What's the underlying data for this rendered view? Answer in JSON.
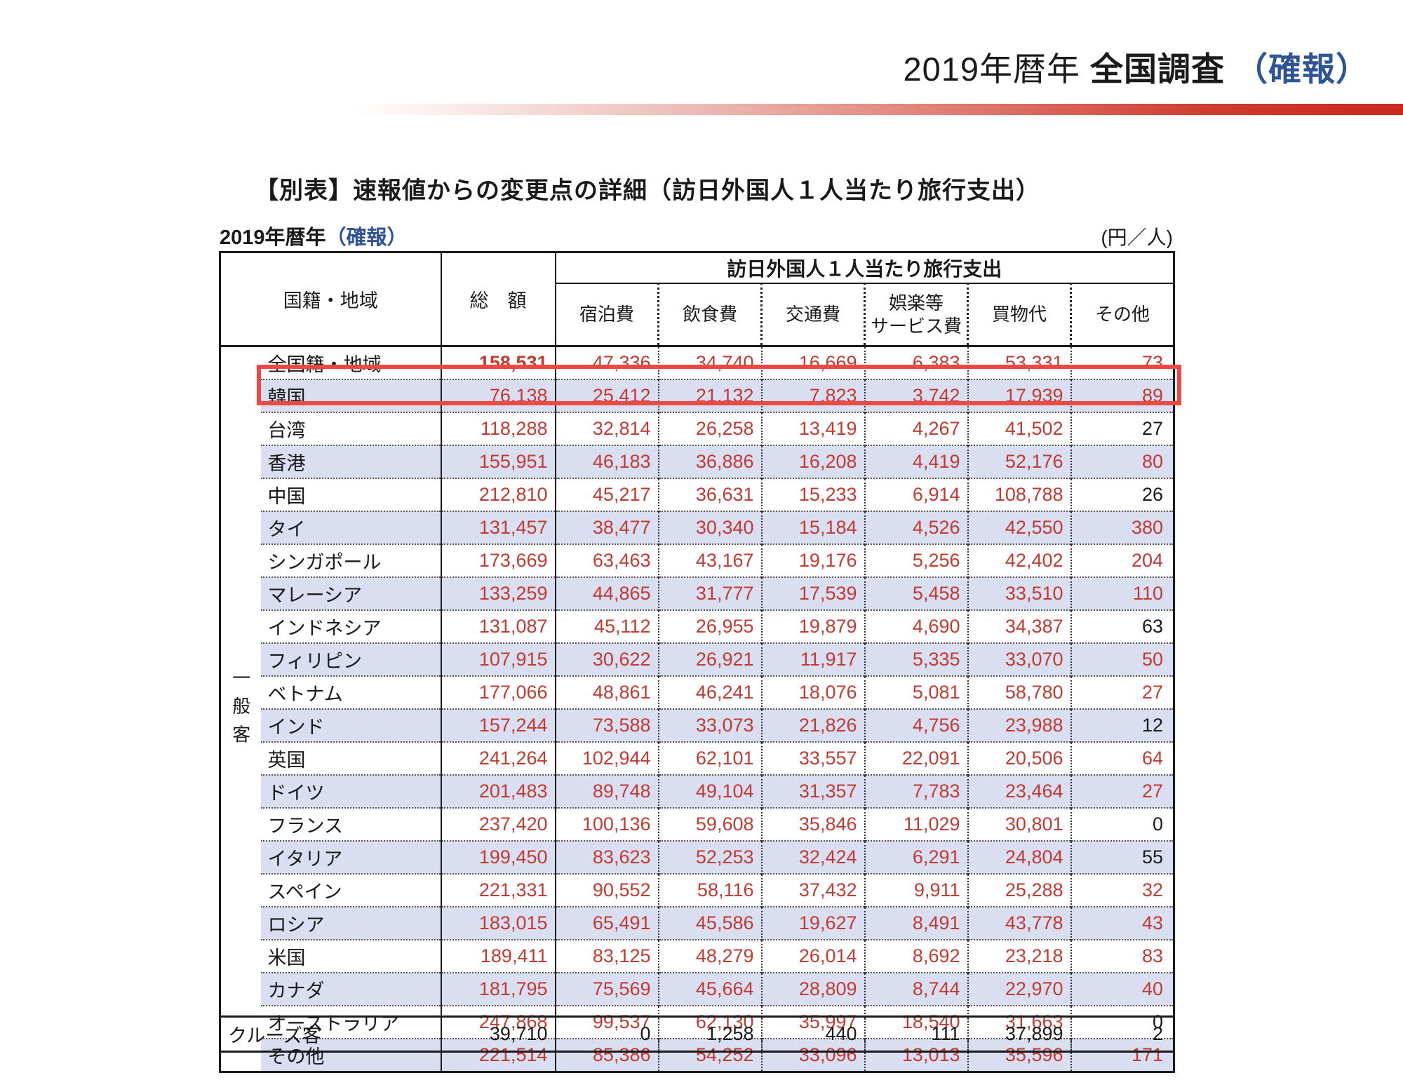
{
  "page_title": {
    "year": "2019年暦年",
    "survey": "全国調査",
    "kakuho": "（確報）"
  },
  "subtitle": "【別表】速報値からの変更点の詳細（訪日外国人１人当たり旅行支出）",
  "period_label": {
    "year": "2019年暦年",
    "kakuho": "（確報）"
  },
  "unit_label": "(円／人)",
  "accent_colors": {
    "bar_red": "#c82a1e",
    "highlight_red": "#ee4843",
    "value_red": "#c23a32",
    "stripe_lavender": "#d9def0",
    "kakuho_blue": "#2f5496"
  },
  "table": {
    "header": {
      "nationality": "国籍・地域",
      "total": "総　額",
      "group": "訪日外国人１人当たり旅行支出",
      "sub": [
        "宿泊費",
        "飲食費",
        "交通費",
        "娯楽等\nサービス費",
        "買物代",
        "その他"
      ]
    },
    "visitor_group_label": "一般客",
    "rows": [
      {
        "name": "全国籍・地域",
        "shaded": false,
        "bold_total": true,
        "values": [
          "158,531",
          "47,336",
          "34,740",
          "16,669",
          "6,383",
          "53,331",
          "73"
        ],
        "black": []
      },
      {
        "name": "韓国",
        "shaded": true,
        "highlight": true,
        "values": [
          "76,138",
          "25,412",
          "21,132",
          "7,823",
          "3,742",
          "17,939",
          "89"
        ],
        "black": []
      },
      {
        "name": "台湾",
        "shaded": false,
        "values": [
          "118,288",
          "32,814",
          "26,258",
          "13,419",
          "4,267",
          "41,502",
          "27"
        ],
        "black": [
          6
        ]
      },
      {
        "name": "香港",
        "shaded": true,
        "values": [
          "155,951",
          "46,183",
          "36,886",
          "16,208",
          "4,419",
          "52,176",
          "80"
        ],
        "black": []
      },
      {
        "name": "中国",
        "shaded": false,
        "values": [
          "212,810",
          "45,217",
          "36,631",
          "15,233",
          "6,914",
          "108,788",
          "26"
        ],
        "black": [
          6
        ]
      },
      {
        "name": "タイ",
        "shaded": true,
        "values": [
          "131,457",
          "38,477",
          "30,340",
          "15,184",
          "4,526",
          "42,550",
          "380"
        ],
        "black": []
      },
      {
        "name": "シンガポール",
        "shaded": false,
        "values": [
          "173,669",
          "63,463",
          "43,167",
          "19,176",
          "5,256",
          "42,402",
          "204"
        ],
        "black": []
      },
      {
        "name": "マレーシア",
        "shaded": true,
        "values": [
          "133,259",
          "44,865",
          "31,777",
          "17,539",
          "5,458",
          "33,510",
          "110"
        ],
        "black": []
      },
      {
        "name": "インドネシア",
        "shaded": false,
        "values": [
          "131,087",
          "45,112",
          "26,955",
          "19,879",
          "4,690",
          "34,387",
          "63"
        ],
        "black": [
          6
        ]
      },
      {
        "name": "フィリピン",
        "shaded": true,
        "values": [
          "107,915",
          "30,622",
          "26,921",
          "11,917",
          "5,335",
          "33,070",
          "50"
        ],
        "black": []
      },
      {
        "name": "ベトナム",
        "shaded": false,
        "values": [
          "177,066",
          "48,861",
          "46,241",
          "18,076",
          "5,081",
          "58,780",
          "27"
        ],
        "black": []
      },
      {
        "name": "インド",
        "shaded": true,
        "values": [
          "157,244",
          "73,588",
          "33,073",
          "21,826",
          "4,756",
          "23,988",
          "12"
        ],
        "black": [
          6
        ]
      },
      {
        "name": "英国",
        "shaded": false,
        "values": [
          "241,264",
          "102,944",
          "62,101",
          "33,557",
          "22,091",
          "20,506",
          "64"
        ],
        "black": []
      },
      {
        "name": "ドイツ",
        "shaded": true,
        "values": [
          "201,483",
          "89,748",
          "49,104",
          "31,357",
          "7,783",
          "23,464",
          "27"
        ],
        "black": []
      },
      {
        "name": "フランス",
        "shaded": false,
        "values": [
          "237,420",
          "100,136",
          "59,608",
          "35,846",
          "11,029",
          "30,801",
          "0"
        ],
        "black": [
          6
        ]
      },
      {
        "name": "イタリア",
        "shaded": true,
        "values": [
          "199,450",
          "83,623",
          "52,253",
          "32,424",
          "6,291",
          "24,804",
          "55"
        ],
        "black": [
          6
        ]
      },
      {
        "name": "スペイン",
        "shaded": false,
        "values": [
          "221,331",
          "90,552",
          "58,116",
          "37,432",
          "9,911",
          "25,288",
          "32"
        ],
        "black": []
      },
      {
        "name": "ロシア",
        "shaded": true,
        "values": [
          "183,015",
          "65,491",
          "45,586",
          "19,627",
          "8,491",
          "43,778",
          "43"
        ],
        "black": []
      },
      {
        "name": "米国",
        "shaded": false,
        "values": [
          "189,411",
          "83,125",
          "48,279",
          "26,014",
          "8,692",
          "23,218",
          "83"
        ],
        "black": []
      },
      {
        "name": "カナダ",
        "shaded": true,
        "values": [
          "181,795",
          "75,569",
          "45,664",
          "28,809",
          "8,744",
          "22,970",
          "40"
        ],
        "black": []
      },
      {
        "name": "オーストラリア",
        "shaded": false,
        "values": [
          "247,868",
          "99,537",
          "62,130",
          "35,997",
          "18,540",
          "31,663",
          "0"
        ],
        "black": [
          6
        ]
      },
      {
        "name": "その他",
        "shaded": true,
        "values": [
          "221,514",
          "85,386",
          "54,252",
          "33,096",
          "13,013",
          "35,596",
          "171"
        ],
        "black": []
      }
    ],
    "cruise": {
      "name": "クルーズ客",
      "values": [
        "39,710",
        "0",
        "1,258",
        "440",
        "111",
        "37,899",
        "2"
      ]
    }
  }
}
